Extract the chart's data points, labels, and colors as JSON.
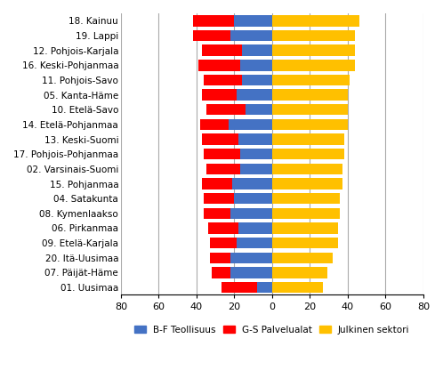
{
  "regions": [
    "18. Kainuu",
    "19. Lappi",
    "12. Pohjois-Karjala",
    "16. Keski-Pohjanmaa",
    "11. Pohjois-Savo",
    "05. Kanta-Häme",
    "10. Etelä-Savo",
    "14. Etelä-Pohjanmaa",
    "13. Keski-Suomi",
    "17. Pohjois-Pohjanmaa",
    "02. Varsinais-Suomi",
    "15. Pohjanmaa",
    "04. Satakunta",
    "08. Kymenlaakso",
    "06. Pirkanmaa",
    "09. Etelä-Karjala",
    "20. Itä-Uusimaa",
    "07. Päijät-Häme",
    "01. Uusimaa"
  ],
  "teollisuus": [
    20,
    22,
    16,
    17,
    16,
    19,
    14,
    23,
    18,
    17,
    17,
    21,
    20,
    22,
    18,
    19,
    22,
    22,
    8
  ],
  "palvelualat": [
    22,
    20,
    21,
    22,
    20,
    18,
    21,
    15,
    19,
    19,
    18,
    16,
    16,
    14,
    16,
    14,
    11,
    10,
    19
  ],
  "julkinen": [
    46,
    44,
    44,
    44,
    41,
    40,
    40,
    40,
    38,
    38,
    37,
    37,
    36,
    36,
    35,
    35,
    32,
    29,
    27
  ],
  "colors": {
    "teollisuus": "#4472C4",
    "palvelualat": "#FF0000",
    "julkinen": "#FFC000"
  },
  "legend_labels": [
    "B-F Teollisuus",
    "G-S Palvelualat",
    "Julkinen sektori"
  ],
  "xlim": [
    -80,
    80
  ],
  "xticks": [
    -80,
    -60,
    -40,
    -20,
    0,
    20,
    40,
    60,
    80
  ],
  "xticklabels": [
    "80",
    "60",
    "40",
    "20",
    "0",
    "20",
    "40",
    "60",
    "80"
  ],
  "background_color": "#ffffff",
  "grid_color": "#aaaaaa"
}
